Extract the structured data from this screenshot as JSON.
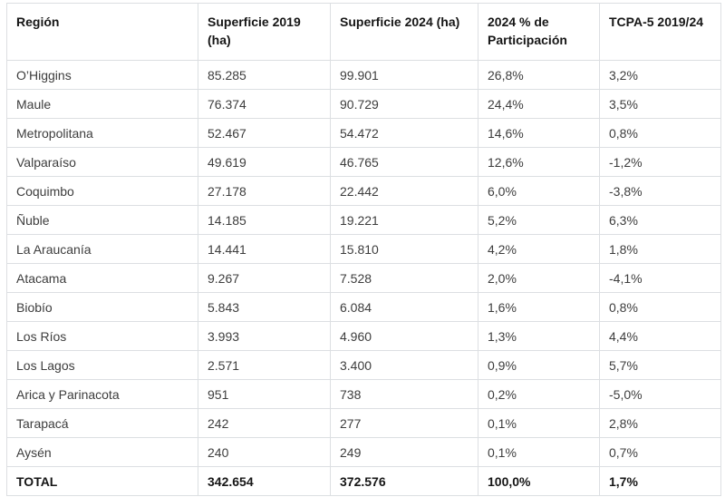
{
  "table": {
    "columns": [
      {
        "label": "Región"
      },
      {
        "label": "Superficie 2019 (ha)"
      },
      {
        "label": "Superficie 2024 (ha)"
      },
      {
        "label": "2024 % de Participación"
      },
      {
        "label": "TCPA-5 2019/24"
      }
    ],
    "rows": [
      [
        "O’Higgins",
        "85.285",
        "99.901",
        "26,8%",
        "3,2%"
      ],
      [
        "Maule",
        "76.374",
        "90.729",
        "24,4%",
        "3,5%"
      ],
      [
        "Metropolitana",
        "52.467",
        "54.472",
        "14,6%",
        "0,8%"
      ],
      [
        "Valparaíso",
        "49.619",
        "46.765",
        "12,6%",
        "-1,2%"
      ],
      [
        "Coquimbo",
        "27.178",
        "22.442",
        "6,0%",
        "-3,8%"
      ],
      [
        "Ñuble",
        "14.185",
        "19.221",
        "5,2%",
        "6,3%"
      ],
      [
        "La Araucanía",
        "14.441",
        "15.810",
        "4,2%",
        "1,8%"
      ],
      [
        "Atacama",
        "9.267",
        "7.528",
        "2,0%",
        "-4,1%"
      ],
      [
        "Biobío",
        "5.843",
        "6.084",
        "1,6%",
        "0,8%"
      ],
      [
        "Los Ríos",
        "3.993",
        "4.960",
        "1,3%",
        "4,4%"
      ],
      [
        "Los Lagos",
        "2.571",
        "3.400",
        "0,9%",
        "5,7%"
      ],
      [
        "Arica y Parinacota",
        "951",
        "738",
        "0,2%",
        "-5,0%"
      ],
      [
        "Tarapacá",
        "242",
        "277",
        "0,1%",
        "2,8%"
      ],
      [
        "Aysén",
        "240",
        "249",
        "0,1%",
        "0,7%"
      ]
    ],
    "total": [
      "TOTAL",
      "342.654",
      "372.576",
      "100,0%",
      "1,7%"
    ]
  },
  "colors": {
    "border": "#dcdfe2",
    "header_text": "#161616",
    "body_text": "#3d3d3d",
    "background": "#ffffff"
  }
}
